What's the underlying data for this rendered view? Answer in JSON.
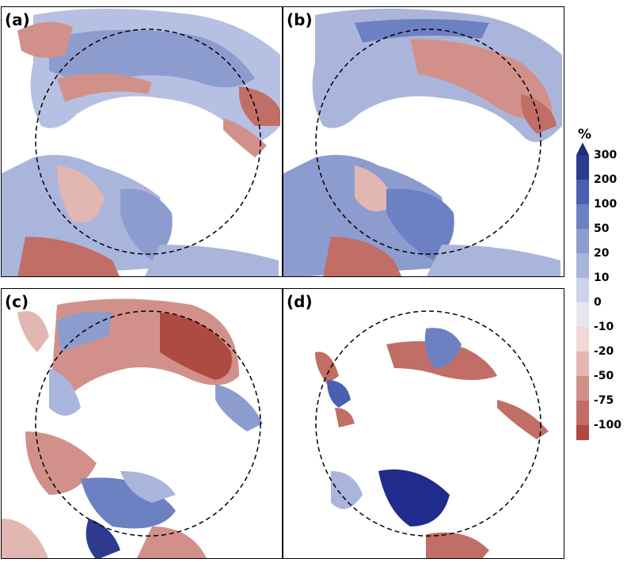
{
  "panels": [
    {
      "label": "(a)"
    },
    {
      "label": "(b)"
    },
    {
      "label": "(c)"
    },
    {
      "label": "(d)"
    }
  ],
  "colorbar": {
    "unit": "%",
    "ticks": [
      "300",
      "200",
      "100",
      "50",
      "20",
      "10",
      "0",
      "-10",
      "-20",
      "-50",
      "-75",
      "-100"
    ],
    "colors": [
      "#2b3c8e",
      "#4a5fae",
      "#6d80c2",
      "#8d9ccf",
      "#aab5dc",
      "#cdd3ea",
      "#e6e6ef",
      "#efd8d6",
      "#e2b7b1",
      "#d1918a",
      "#c06e66",
      "#ad4a42"
    ],
    "arrow_color": "#1f2c78"
  },
  "colors": {
    "deep_blue": "#1f2c8c",
    "blue": "#6b7fc4",
    "light_blue": "#b6c0e2",
    "pale": "#e4dfe6",
    "light_red": "#e0b4ad",
    "red": "#c66e66",
    "deep_red": "#a93f37"
  }
}
